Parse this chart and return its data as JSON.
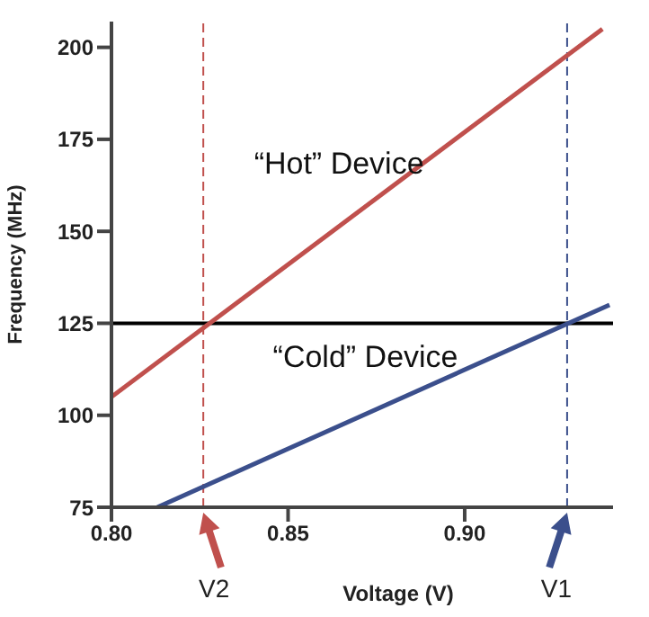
{
  "chart_data": {
    "type": "line",
    "xlabel": "Voltage (V)",
    "ylabel": "Frequency (MHz)",
    "xlim": [
      0.8,
      0.942
    ],
    "xticks": [
      {
        "value": 0.8,
        "label": "0.80"
      },
      {
        "value": 0.85,
        "label": "0.85"
      },
      {
        "value": 0.9,
        "label": "0.90"
      }
    ],
    "ylim": [
      75,
      207
    ],
    "yticks": [
      75,
      100,
      125,
      150,
      175,
      200
    ],
    "marker": "none",
    "grid": false,
    "series": [
      {
        "name": "“Hot” Device",
        "color": "#c0504d",
        "x": [
          0.8,
          0.939
        ],
        "values": [
          105,
          205
        ]
      },
      {
        "name": "“Cold” Device",
        "color": "#3b4f8c",
        "x": [
          0.813,
          0.941
        ],
        "values": [
          75,
          130
        ]
      }
    ],
    "ref_lines": [
      {
        "axis": "y",
        "value": 125,
        "color": "#000000",
        "line_style": "solid"
      },
      {
        "axis": "x",
        "value": 0.826,
        "label": "V2",
        "color": "#c0504d",
        "line_style": "dashed"
      },
      {
        "axis": "x",
        "value": 0.929,
        "label": "V1",
        "color": "#3b4f8c",
        "line_style": "dashed"
      }
    ]
  }
}
